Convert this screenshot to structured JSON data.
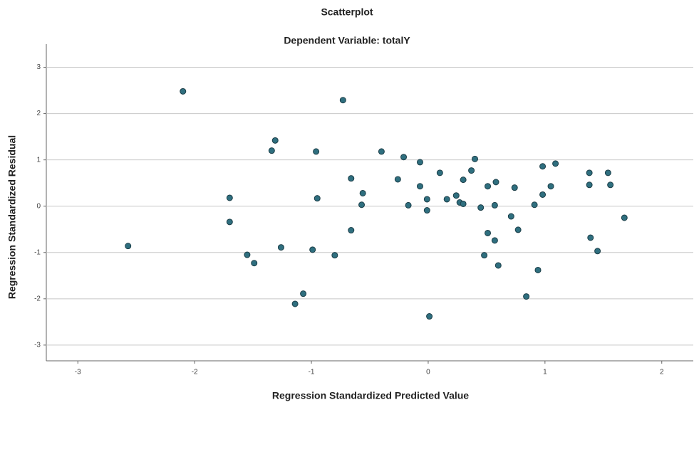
{
  "chart_data": {
    "type": "scatter",
    "title": "Scatterplot",
    "subtitle": "Dependent Variable: totalY",
    "x_label": "Regression Standardized Predicted Value",
    "y_label": "Regression Standardized Residual",
    "color": "#2f6f7f",
    "grid": true,
    "xlim": [
      -3.27,
      2.27
    ],
    "ylim": [
      -3.34,
      3.5
    ],
    "xticks": [
      -3,
      -2,
      -1,
      0,
      1,
      2
    ],
    "yticks": [
      -3,
      -2,
      -1,
      0,
      1,
      2,
      3
    ],
    "x": [
      -2.57,
      -2.1,
      -1.7,
      -1.7,
      -1.55,
      -1.49,
      -1.34,
      -1.31,
      -1.26,
      -1.14,
      -1.07,
      -0.99,
      -0.96,
      -0.95,
      -0.8,
      -0.73,
      -0.66,
      -0.66,
      -0.56,
      -0.57,
      -0.4,
      -0.26,
      -0.21,
      -0.17,
      -0.07,
      -0.07,
      -0.01,
      -0.01,
      0.01,
      0.1,
      0.16,
      0.24,
      0.27,
      0.3,
      0.3,
      0.37,
      0.4,
      0.45,
      0.48,
      0.51,
      0.51,
      0.57,
      0.57,
      0.58,
      0.6,
      0.71,
      0.74,
      0.77,
      0.84,
      0.91,
      0.94,
      0.98,
      0.98,
      1.05,
      1.09,
      1.38,
      1.38,
      1.39,
      1.45,
      1.54,
      1.56,
      1.68
    ],
    "y": [
      -0.86,
      2.48,
      0.18,
      -0.34,
      -1.05,
      -1.23,
      1.2,
      1.42,
      -0.89,
      -2.11,
      -1.89,
      -0.94,
      1.18,
      0.17,
      -1.06,
      2.29,
      -0.52,
      0.6,
      0.28,
      0.03,
      1.18,
      0.58,
      1.06,
      0.02,
      0.95,
      0.43,
      0.15,
      -0.09,
      -2.38,
      0.72,
      0.15,
      0.23,
      0.08,
      0.05,
      0.57,
      0.77,
      1.02,
      -0.03,
      -1.06,
      -0.58,
      0.43,
      -0.74,
      0.02,
      0.52,
      -1.28,
      -0.22,
      0.4,
      -0.51,
      -1.95,
      0.03,
      -1.38,
      0.25,
      0.86,
      0.43,
      0.92,
      0.72,
      0.46,
      -0.68,
      -0.97,
      0.72,
      0.46,
      -0.25
    ]
  }
}
